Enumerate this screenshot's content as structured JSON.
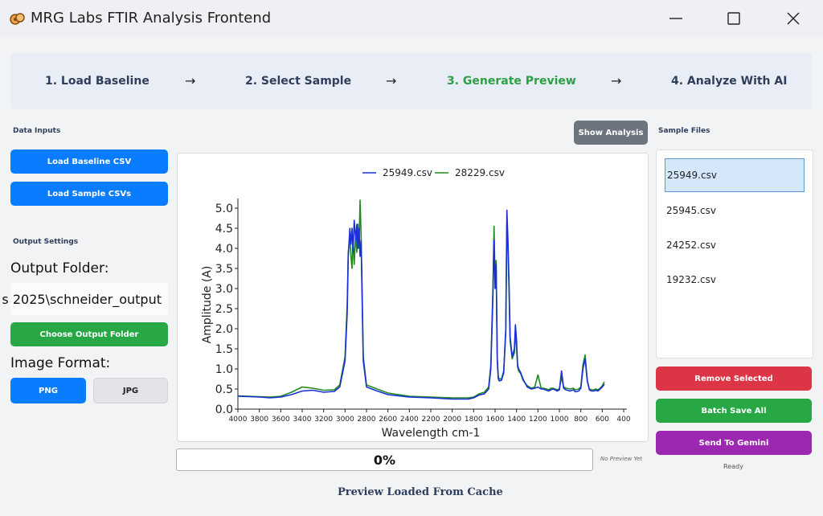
{
  "window": {
    "title": "MRG Labs FTIR Analysis Frontend"
  },
  "steps": [
    {
      "label": "1. Load Baseline",
      "color": "#2f3e5c"
    },
    {
      "label": "2. Select Sample",
      "color": "#2f3e5c"
    },
    {
      "label": "3. Generate Preview",
      "color": "#2ea043"
    },
    {
      "label": "4. Analyze With AI",
      "color": "#2f3e5c"
    }
  ],
  "arrow_glyph": "→",
  "left": {
    "data_inputs_title": "Data Inputs",
    "load_baseline_label": "Load Baseline CSV",
    "load_samples_label": "Load Sample CSVs",
    "output_settings_title": "Output Settings",
    "output_folder_label": "Output Folder:",
    "output_folder_value": "s 2025\\schneider_output",
    "choose_folder_label": "Choose Output Folder",
    "image_format_label": "Image Format:",
    "format_png": "PNG",
    "format_jpg": "JPG",
    "selected_format": "PNG"
  },
  "center": {
    "show_analysis_label": "Show Analysis",
    "progress_text": "0%",
    "progress_value": 0,
    "preview_status": "No Preview Yet",
    "footer_status": "Preview Loaded From Cache"
  },
  "right": {
    "sample_files_title": "Sample Files",
    "files": [
      "25949.csv",
      "25945.csv",
      "24252.csv",
      "19232.csv"
    ],
    "selected_file": "25949.csv",
    "remove_label": "Remove Selected",
    "batch_save_label": "Batch Save All",
    "send_gemini_label": "Send To Gemini",
    "status": "Ready"
  },
  "colors": {
    "accent_blue": "#0a7cff",
    "green": "#28a745",
    "red": "#dc3545",
    "purple": "#9c27b0",
    "gray_button": "#6c757d"
  },
  "chart_data": {
    "type": "line",
    "xlabel": "Wavelength cm-1",
    "ylabel": "Amplitude (A)",
    "xlim": [
      4000,
      400
    ],
    "ylim": [
      0,
      5.2
    ],
    "x_reversed": true,
    "xticks": [
      4000,
      3800,
      3600,
      3400,
      3200,
      3000,
      2800,
      2600,
      2400,
      2200,
      2000,
      1800,
      1600,
      1400,
      1200,
      1000,
      800,
      600,
      400
    ],
    "yticks": [
      0.0,
      0.5,
      1.0,
      1.5,
      2.0,
      2.5,
      3.0,
      3.5,
      4.0,
      4.5,
      5.0
    ],
    "ytick_labels": [
      "0.0",
      "0.5",
      "1.0",
      "1.5",
      "2.0",
      "2.5",
      "3.0",
      "3.5",
      "4.0",
      "4.5",
      "5.0"
    ],
    "legend_position": "top",
    "series": [
      {
        "name": "25949.csv",
        "color": "#1a2fd6",
        "x": [
          4000,
          3800,
          3700,
          3600,
          3500,
          3400,
          3300,
          3200,
          3100,
          3050,
          3000,
          2980,
          2970,
          2955,
          2945,
          2935,
          2925,
          2915,
          2900,
          2890,
          2880,
          2870,
          2860,
          2850,
          2840,
          2830,
          2800,
          2700,
          2600,
          2400,
          2200,
          2000,
          1850,
          1800,
          1750,
          1700,
          1660,
          1640,
          1620,
          1610,
          1600,
          1590,
          1580,
          1570,
          1560,
          1540,
          1520,
          1500,
          1490,
          1480,
          1470,
          1460,
          1440,
          1420,
          1410,
          1400,
          1390,
          1380,
          1360,
          1340,
          1300,
          1260,
          1230,
          1200,
          1170,
          1150,
          1120,
          1100,
          1080,
          1060,
          1040,
          1020,
          1000,
          980,
          960,
          940,
          900,
          870,
          850,
          820,
          800,
          780,
          760,
          740,
          720,
          700,
          680,
          660,
          640,
          620,
          600,
          580
        ],
        "y": [
          0.32,
          0.3,
          0.28,
          0.3,
          0.36,
          0.45,
          0.47,
          0.42,
          0.44,
          0.55,
          1.2,
          2.4,
          3.8,
          4.5,
          4.1,
          4.5,
          3.9,
          4.7,
          4.2,
          4.6,
          4.0,
          4.5,
          3.8,
          4.2,
          2.6,
          1.2,
          0.55,
          0.45,
          0.36,
          0.3,
          0.28,
          0.25,
          0.25,
          0.28,
          0.35,
          0.38,
          0.5,
          1.0,
          2.8,
          4.2,
          3.0,
          3.6,
          1.2,
          0.75,
          0.7,
          0.72,
          0.9,
          2.0,
          4.95,
          4.2,
          3.2,
          1.8,
          1.3,
          1.5,
          2.1,
          1.7,
          1.1,
          1.0,
          0.9,
          0.75,
          0.55,
          0.5,
          0.52,
          0.55,
          0.5,
          0.5,
          0.47,
          0.45,
          0.48,
          0.5,
          0.48,
          0.45,
          0.48,
          0.95,
          0.52,
          0.48,
          0.45,
          0.48,
          0.43,
          0.45,
          0.52,
          1.0,
          1.25,
          0.7,
          0.48,
          0.45,
          0.45,
          0.47,
          0.45,
          0.5,
          0.55,
          0.62
        ]
      },
      {
        "name": "28229.csv",
        "color": "#1f8a1f",
        "x": [
          4000,
          3800,
          3700,
          3600,
          3500,
          3400,
          3300,
          3200,
          3100,
          3050,
          3000,
          2980,
          2970,
          2955,
          2945,
          2935,
          2925,
          2915,
          2900,
          2890,
          2880,
          2870,
          2860,
          2850,
          2840,
          2830,
          2800,
          2700,
          2600,
          2400,
          2200,
          2000,
          1850,
          1800,
          1750,
          1700,
          1660,
          1640,
          1620,
          1610,
          1600,
          1590,
          1580,
          1570,
          1560,
          1540,
          1520,
          1500,
          1490,
          1480,
          1470,
          1460,
          1440,
          1420,
          1410,
          1400,
          1390,
          1380,
          1360,
          1340,
          1300,
          1260,
          1230,
          1200,
          1170,
          1150,
          1120,
          1100,
          1080,
          1060,
          1040,
          1020,
          1000,
          980,
          960,
          940,
          900,
          870,
          850,
          820,
          800,
          780,
          760,
          740,
          720,
          700,
          680,
          660,
          640,
          620,
          600,
          580
        ],
        "y": [
          0.33,
          0.31,
          0.3,
          0.32,
          0.42,
          0.55,
          0.52,
          0.47,
          0.48,
          0.6,
          1.3,
          2.6,
          3.9,
          4.3,
          3.8,
          3.5,
          4.3,
          3.6,
          4.4,
          3.9,
          4.6,
          4.0,
          5.2,
          4.3,
          2.8,
          1.3,
          0.6,
          0.5,
          0.4,
          0.32,
          0.3,
          0.28,
          0.28,
          0.3,
          0.38,
          0.42,
          0.55,
          1.1,
          3.0,
          4.55,
          3.2,
          3.7,
          1.3,
          0.8,
          0.75,
          0.75,
          0.95,
          1.9,
          4.6,
          4.0,
          3.0,
          1.7,
          1.25,
          1.4,
          1.9,
          1.55,
          1.05,
          0.95,
          0.88,
          0.72,
          0.58,
          0.52,
          0.55,
          0.85,
          0.52,
          0.52,
          0.5,
          0.48,
          0.52,
          0.52,
          0.5,
          0.48,
          0.5,
          0.8,
          0.55,
          0.52,
          0.5,
          0.52,
          0.48,
          0.5,
          0.55,
          1.1,
          1.35,
          0.72,
          0.5,
          0.48,
          0.48,
          0.5,
          0.48,
          0.52,
          0.58,
          0.68
        ]
      }
    ]
  }
}
